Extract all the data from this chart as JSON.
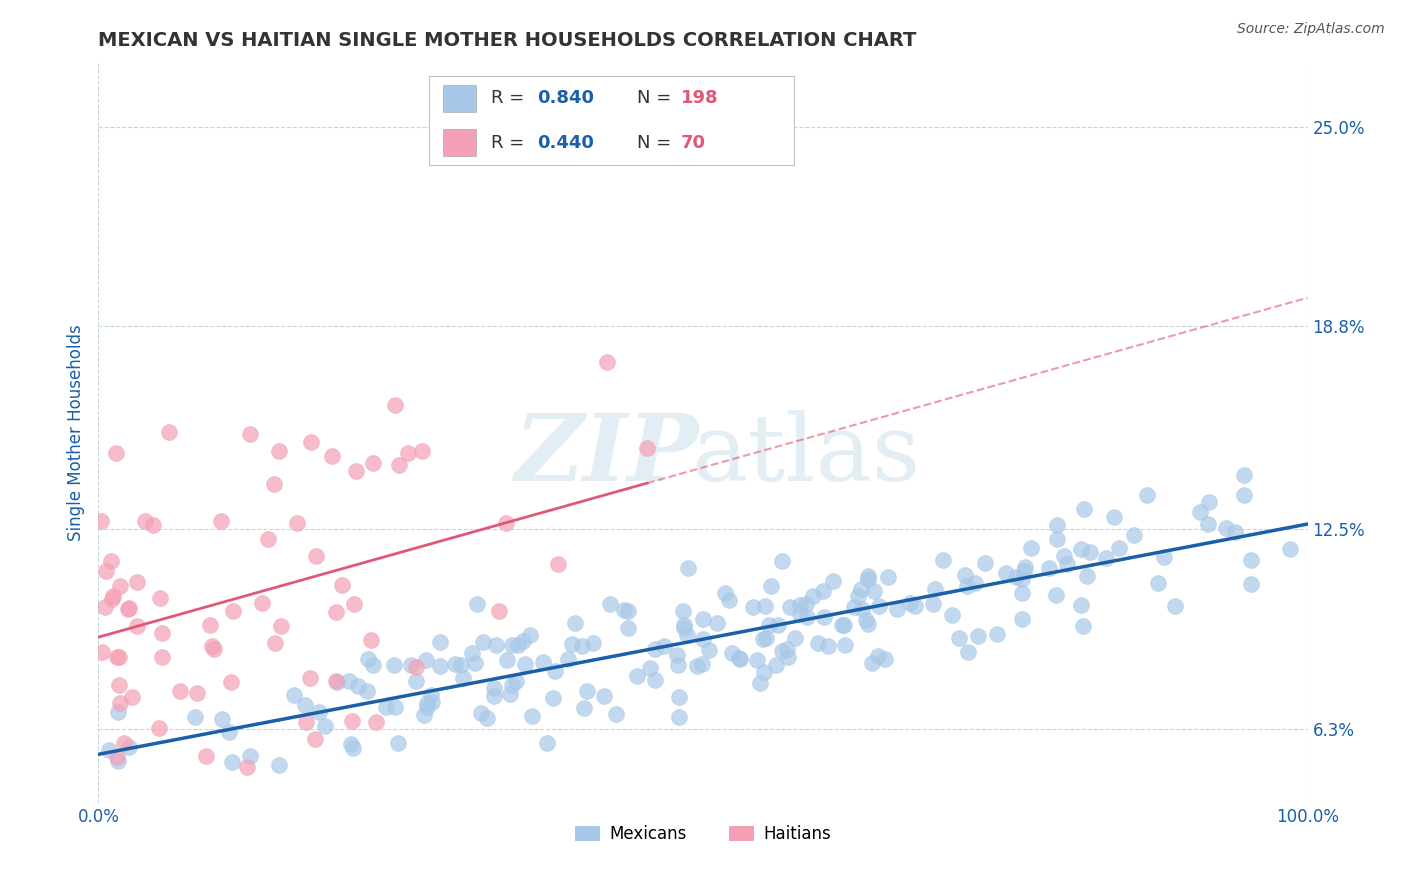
{
  "title": "MEXICAN VS HAITIAN SINGLE MOTHER HOUSEHOLDS CORRELATION CHART",
  "source": "Source: ZipAtlas.com",
  "ylabel": "Single Mother Households",
  "xlim": [
    0.0,
    1.0
  ],
  "ylim": [
    0.04,
    0.27
  ],
  "yticks": [
    0.063,
    0.125,
    0.188,
    0.25
  ],
  "ytick_labels": [
    "6.3%",
    "12.5%",
    "18.8%",
    "25.0%"
  ],
  "xticks": [
    0.0,
    1.0
  ],
  "xtick_labels": [
    "0.0%",
    "100.0%"
  ],
  "mexican_color": "#a8c8e8",
  "haitian_color": "#f4a0b4",
  "mexican_line_color": "#1a5fa8",
  "haitian_line_color": "#e05878",
  "background_color": "#ffffff",
  "grid_color": "#b8ccd8",
  "title_color": "#333333",
  "source_color": "#555555",
  "axis_label_color": "#1a5fa8",
  "tick_label_color": "#1a5fa8",
  "legend_r_color": "#1a5fa8",
  "legend_n_color": "#e05878",
  "mexican_R": 0.84,
  "haitian_R": 0.44,
  "mexican_N": 198,
  "haitian_N": 70,
  "seed_mexican": 42,
  "seed_haitian": 99
}
